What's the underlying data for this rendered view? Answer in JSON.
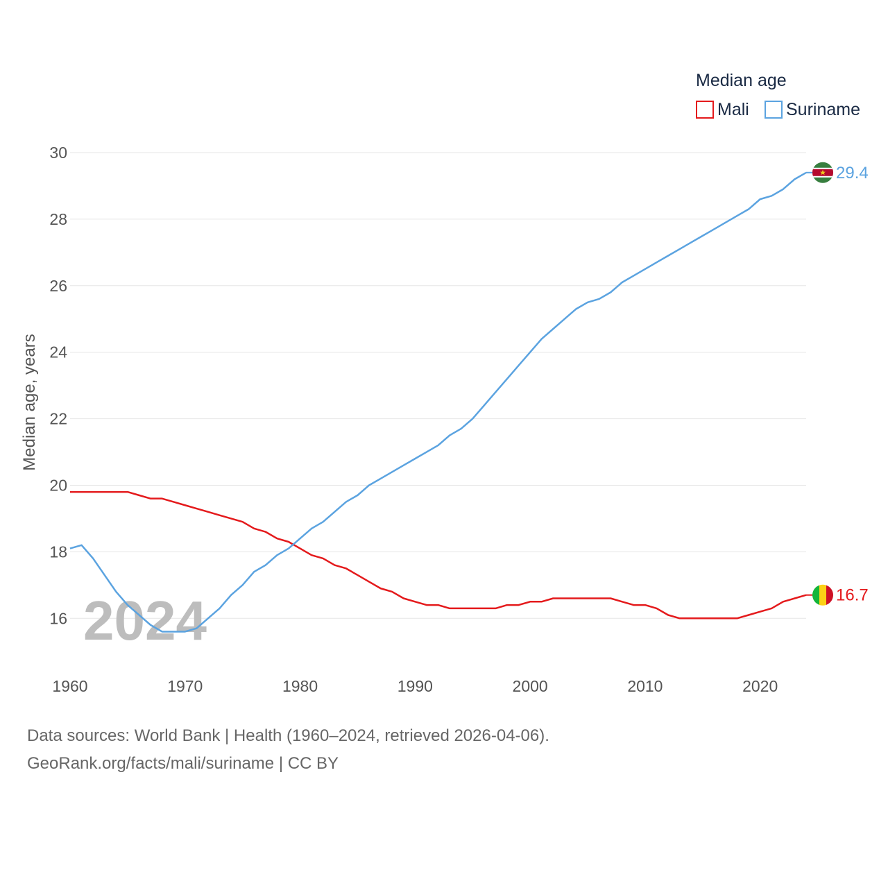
{
  "chart_data": {
    "type": "line",
    "legend_title": "Median age",
    "ylabel": "Median age, years",
    "xlabel": "",
    "ylim": [
      14.4,
      30
    ],
    "xlim": [
      1960,
      2024
    ],
    "y_ticks": [
      16,
      18,
      20,
      22,
      24,
      26,
      28,
      30
    ],
    "x_ticks": [
      1960,
      1970,
      1980,
      1990,
      2000,
      2010,
      2020
    ],
    "year_label": "2024",
    "grid": true,
    "legend_position": "top-right",
    "x": [
      1960,
      1961,
      1962,
      1963,
      1964,
      1965,
      1966,
      1967,
      1968,
      1969,
      1970,
      1971,
      1972,
      1973,
      1974,
      1975,
      1976,
      1977,
      1978,
      1979,
      1980,
      1981,
      1982,
      1983,
      1984,
      1985,
      1986,
      1987,
      1988,
      1989,
      1990,
      1991,
      1992,
      1993,
      1994,
      1995,
      1996,
      1997,
      1998,
      1999,
      2000,
      2001,
      2002,
      2003,
      2004,
      2005,
      2006,
      2007,
      2008,
      2009,
      2010,
      2011,
      2012,
      2013,
      2014,
      2015,
      2016,
      2017,
      2018,
      2019,
      2020,
      2021,
      2022,
      2023,
      2024
    ],
    "series": [
      {
        "name": "Mali",
        "color": "#e41a1c",
        "end_label": "16.7",
        "values": [
          19.8,
          19.8,
          19.8,
          19.8,
          19.8,
          19.8,
          19.7,
          19.6,
          19.6,
          19.5,
          19.4,
          19.3,
          19.2,
          19.1,
          19.0,
          18.9,
          18.7,
          18.6,
          18.4,
          18.3,
          18.1,
          17.9,
          17.8,
          17.6,
          17.5,
          17.3,
          17.1,
          16.9,
          16.8,
          16.6,
          16.5,
          16.4,
          16.4,
          16.3,
          16.3,
          16.3,
          16.3,
          16.3,
          16.4,
          16.4,
          16.5,
          16.5,
          16.6,
          16.6,
          16.6,
          16.6,
          16.6,
          16.6,
          16.5,
          16.4,
          16.4,
          16.3,
          16.1,
          16.0,
          16.0,
          16.0,
          16.0,
          16.0,
          16.0,
          16.1,
          16.2,
          16.3,
          16.5,
          16.6,
          16.7
        ]
      },
      {
        "name": "Suriname",
        "color": "#5ba3e0",
        "end_label": "29.4",
        "values": [
          18.1,
          18.2,
          17.8,
          17.3,
          16.8,
          16.4,
          16.1,
          15.8,
          15.6,
          15.6,
          15.6,
          15.7,
          16.0,
          16.3,
          16.7,
          17.0,
          17.4,
          17.6,
          17.9,
          18.1,
          18.4,
          18.7,
          18.9,
          19.2,
          19.5,
          19.7,
          20.0,
          20.2,
          20.4,
          20.6,
          20.8,
          21.0,
          21.2,
          21.5,
          21.7,
          22.0,
          22.4,
          22.8,
          23.2,
          23.6,
          24.0,
          24.4,
          24.7,
          25.0,
          25.3,
          25.5,
          25.6,
          25.8,
          26.1,
          26.3,
          26.5,
          26.7,
          26.9,
          27.1,
          27.3,
          27.5,
          27.7,
          27.9,
          28.1,
          28.3,
          28.6,
          28.7,
          28.9,
          29.2,
          29.4
        ]
      }
    ]
  },
  "source": {
    "line1": "Data sources: World Bank | Health (1960–2024, retrieved 2026-04-06).",
    "line2": "GeoRank.org/facts/mali/suriname | CC BY"
  }
}
